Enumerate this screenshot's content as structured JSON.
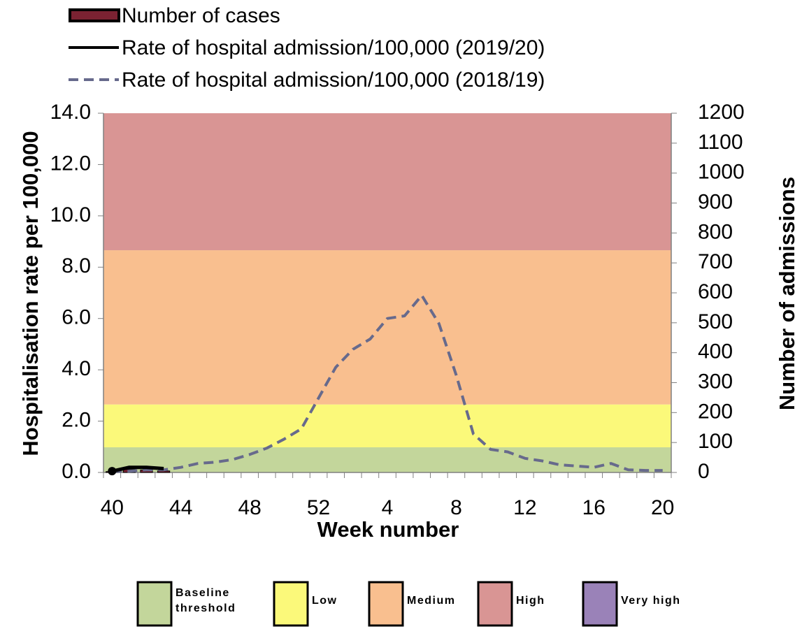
{
  "chart_data": {
    "type": "bar",
    "x_label": "Week number",
    "y_label": "Hospitalisation rate per 100,000",
    "y2_label": "Number of admissions",
    "categories": [
      "40",
      null,
      null,
      null,
      "44",
      null,
      null,
      null,
      "48",
      null,
      null,
      null,
      "52",
      null,
      null,
      null,
      "4",
      null,
      null,
      null,
      "8",
      null,
      null,
      null,
      "12",
      null,
      null,
      null,
      "16",
      null,
      null,
      null,
      "20"
    ],
    "ylim": [
      0,
      14
    ],
    "yticks": [
      {
        "value": 0,
        "label": "0.0"
      },
      {
        "value": 2,
        "label": "2.0"
      },
      {
        "value": 4,
        "label": "4.0"
      },
      {
        "value": 6,
        "label": "6.0"
      },
      {
        "value": 8,
        "label": "8.0"
      },
      {
        "value": 10,
        "label": "10.0"
      },
      {
        "value": 12,
        "label": "12.0"
      },
      {
        "value": 14,
        "label": "14.0"
      }
    ],
    "y2lim": [
      0,
      1200
    ],
    "y2ticks": [
      0,
      100,
      200,
      300,
      400,
      500,
      600,
      700,
      800,
      900,
      1000,
      1100,
      1200
    ],
    "series": [
      {
        "name": "Number of cases",
        "type": "bar",
        "axis": "y2",
        "color": "#7b2232",
        "values": [
          3,
          10,
          8,
          5,
          null,
          null,
          null,
          null,
          null,
          null,
          null,
          null,
          null,
          null,
          null,
          null,
          null,
          null,
          null,
          null,
          null,
          null,
          null,
          null,
          null,
          null,
          null,
          null,
          null,
          null,
          null,
          null,
          null
        ]
      },
      {
        "name": "Rate of hospital admission/100,000 (2019/20)",
        "type": "line",
        "color": "#000000",
        "dash": false,
        "values": [
          0.05,
          0.2,
          0.2,
          0.15,
          null,
          null,
          null,
          null,
          null,
          null,
          null,
          null,
          null,
          null,
          null,
          null,
          null,
          null,
          null,
          null,
          null,
          null,
          null,
          null,
          null,
          null,
          null,
          null,
          null,
          null,
          null,
          null,
          null
        ]
      },
      {
        "name": "Rate of hospital admission/100,000 (2018/19)",
        "type": "line",
        "color": "#676a8c",
        "dash": true,
        "values": [
          0.05,
          0.05,
          0.1,
          0.1,
          0.2,
          0.35,
          0.4,
          0.5,
          0.7,
          0.95,
          1.3,
          1.7,
          2.9,
          4.1,
          4.8,
          5.2,
          6.0,
          6.1,
          6.9,
          5.8,
          3.8,
          1.5,
          0.9,
          0.8,
          0.55,
          0.45,
          0.3,
          0.25,
          0.2,
          0.35,
          0.1,
          0.08,
          0.08
        ]
      }
    ],
    "thresholds": [
      {
        "name": "Baseline threshold",
        "color": "#c3d69b",
        "from": 0,
        "to": 0.98
      },
      {
        "name": "Low",
        "color": "#fbf97a",
        "from": 0.98,
        "to": 2.65
      },
      {
        "name": "Medium",
        "color": "#f9bf8f",
        "from": 2.65,
        "to": 8.66
      },
      {
        "name": "High",
        "color": "#d99594",
        "from": 8.66,
        "to": 14
      },
      {
        "name": "Very high",
        "color": "#9a82b8"
      }
    ]
  }
}
